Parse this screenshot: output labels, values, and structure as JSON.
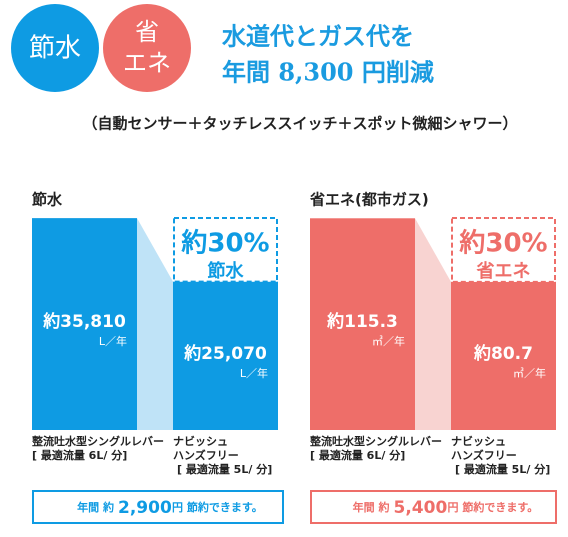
{
  "header": {
    "badges": [
      "節水",
      [
        "省",
        "エネ"
      ]
    ],
    "headline": [
      "水道代とガス代を",
      "年間 8,300 円削減"
    ],
    "subtitle": "（自動センサー＋タッチレススイッチ＋スポット微細シャワー）"
  },
  "chart_data": [
    {
      "type": "bar",
      "title": "節水",
      "categories": [
        [
          "整流吐水型シングルレバー",
          "[ 最適流量 6L/ 分]"
        ],
        [
          "ナビッシュ",
          "ハンズフリー",
          "[ 最適流量 5L/ 分]"
        ]
      ],
      "values": [
        35810,
        25070
      ],
      "value_labels": [
        "約35,810",
        "約25,070"
      ],
      "unit": "L／年",
      "color": "#0e9be3",
      "connector_color": "#bfe3f7",
      "ylim": [
        0,
        36000
      ],
      "reduction": {
        "value": 30,
        "label": "約30%"
      },
      "reduction_text": "節水",
      "footer": {
        "prefix": "年間 約",
        "amount": "2,900",
        "suffix": "円 節約できます。"
      }
    },
    {
      "type": "bar",
      "title": "省エネ(都市ガス)",
      "categories": [
        [
          "整流吐水型シングルレバー",
          "[ 最適流量 6L/ 分]"
        ],
        [
          "ナビッシュ",
          "ハンズフリー",
          "[ 最適流量 5L/ 分]"
        ]
      ],
      "values": [
        115.3,
        80.7
      ],
      "value_labels": [
        "約115.3",
        "約80.7"
      ],
      "unit": "㎥／年",
      "color": "#ee6e69",
      "connector_color": "#f8d3d1",
      "ylim": [
        0,
        116
      ],
      "reduction": {
        "value": 30,
        "label": "約30%"
      },
      "reduction_text": "省エネ",
      "footer": {
        "prefix": "年間 約",
        "amount": "5,400",
        "suffix": "円 節約できます。"
      }
    }
  ]
}
